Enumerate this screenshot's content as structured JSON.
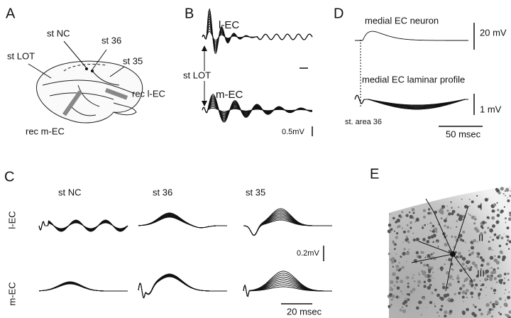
{
  "panels": {
    "A": {
      "label": "A",
      "st_nc": "st NC",
      "st_36": "st 36",
      "st_lot": "st LOT",
      "st_35": "st 35",
      "rec_lec": "rec l-EC",
      "rec_mec": "rec m-EC"
    },
    "B": {
      "label": "B",
      "lec": "l-EC",
      "st_lot": "st LOT",
      "mec": "m-EC",
      "scale": "0.5mV"
    },
    "C": {
      "label": "C",
      "columns": [
        "st NC",
        "st 36",
        "st 35"
      ],
      "rows": [
        "l-EC",
        "m-EC"
      ],
      "scale_v": "0.2mV",
      "scale_t": "20 msec"
    },
    "D": {
      "label": "D",
      "neuron": "medial EC neuron",
      "scale_neuron": "20 mV",
      "profile": "medial EC laminar profile",
      "scale_profile": "1 mV",
      "stim": "st. area 36",
      "scale_t": "50 msec"
    },
    "E": {
      "label": "E",
      "layers": [
        "I",
        "II",
        "III"
      ]
    }
  }
}
